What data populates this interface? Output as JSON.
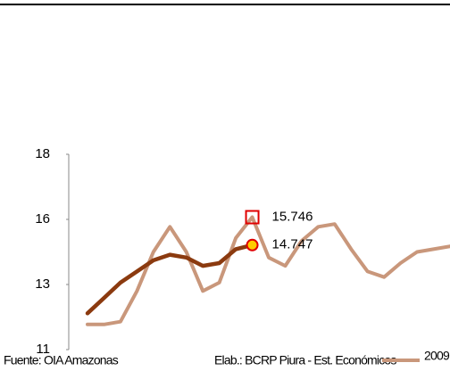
{
  "chart_data": {
    "type": "line",
    "categories": [
      null,
      null,
      null,
      null,
      null,
      null,
      null,
      null,
      null,
      null,
      null,
      null,
      null,
      null,
      null,
      null,
      null,
      null,
      null,
      null,
      null,
      null,
      null
    ],
    "series": [
      {
        "name": "2009",
        "color": "#c9977b",
        "values": [
          11.9,
          11.9,
          12.0,
          13.1,
          14.5,
          15.4,
          14.5,
          13.1,
          13.4,
          15.0,
          15.746,
          14.3,
          14.0,
          14.9,
          15.4,
          15.5,
          14.6,
          13.8,
          13.6,
          14.1,
          14.5,
          14.6,
          14.7
        ]
      },
      {
        "color": "#8b3a0f",
        "values": [
          12.3,
          12.85,
          13.4,
          13.8,
          14.2,
          14.4,
          14.3,
          14.0,
          14.1,
          14.6,
          14.747,
          null,
          null,
          null,
          null,
          null,
          null,
          null,
          null,
          null,
          null,
          null,
          null
        ]
      }
    ],
    "ylim": [
      11,
      18
    ],
    "yticks": [
      11,
      {
        "value": 13.333,
        "label": "13"
      },
      {
        "value": 15.667,
        "label": "16"
      },
      18
    ],
    "source": "Fuente: OIA Amazonas",
    "credit": "Elab.: BCRP Piura - Est. Económicos"
  }
}
